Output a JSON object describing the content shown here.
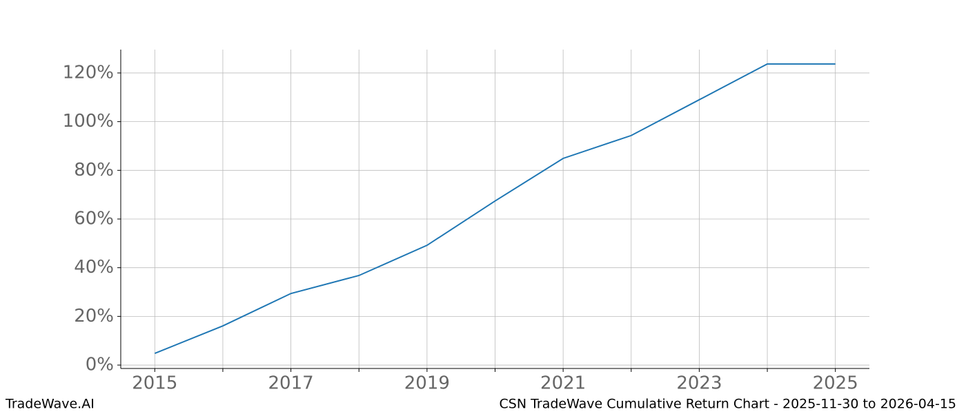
{
  "chart_data": {
    "type": "line",
    "x": [
      2015,
      2016,
      2017,
      2018,
      2019,
      2020,
      2021,
      2022,
      2023,
      2024,
      2025
    ],
    "series": [
      {
        "name": "CSN",
        "color": "#1f77b4",
        "values": [
          4.8,
          16.1,
          29.4,
          36.8,
          49.2,
          67.4,
          84.9,
          94.3,
          109,
          123.7,
          123.7
        ]
      }
    ],
    "xlim": [
      2014.5,
      2025.5
    ],
    "xticks": [
      2015,
      2017,
      2019,
      2021,
      2023,
      2025
    ],
    "xminorticks": [
      2016,
      2018,
      2020,
      2022,
      2024
    ],
    "ylim": [
      -1.4,
      129.6
    ],
    "yticks": [
      {
        "value": 0,
        "label": "0%"
      },
      {
        "value": 20,
        "label": "20%"
      },
      {
        "value": 40,
        "label": "40%"
      },
      {
        "value": 60,
        "label": "60%"
      },
      {
        "value": 80,
        "label": "80%"
      },
      {
        "value": 100,
        "label": "100%"
      },
      {
        "value": 120,
        "label": "120%"
      }
    ],
    "grid": true,
    "watermark": "TradeWave.AI",
    "caption": "CSN TradeWave Cumulative Return Chart - 2025-11-30 to 2026-04-15"
  }
}
